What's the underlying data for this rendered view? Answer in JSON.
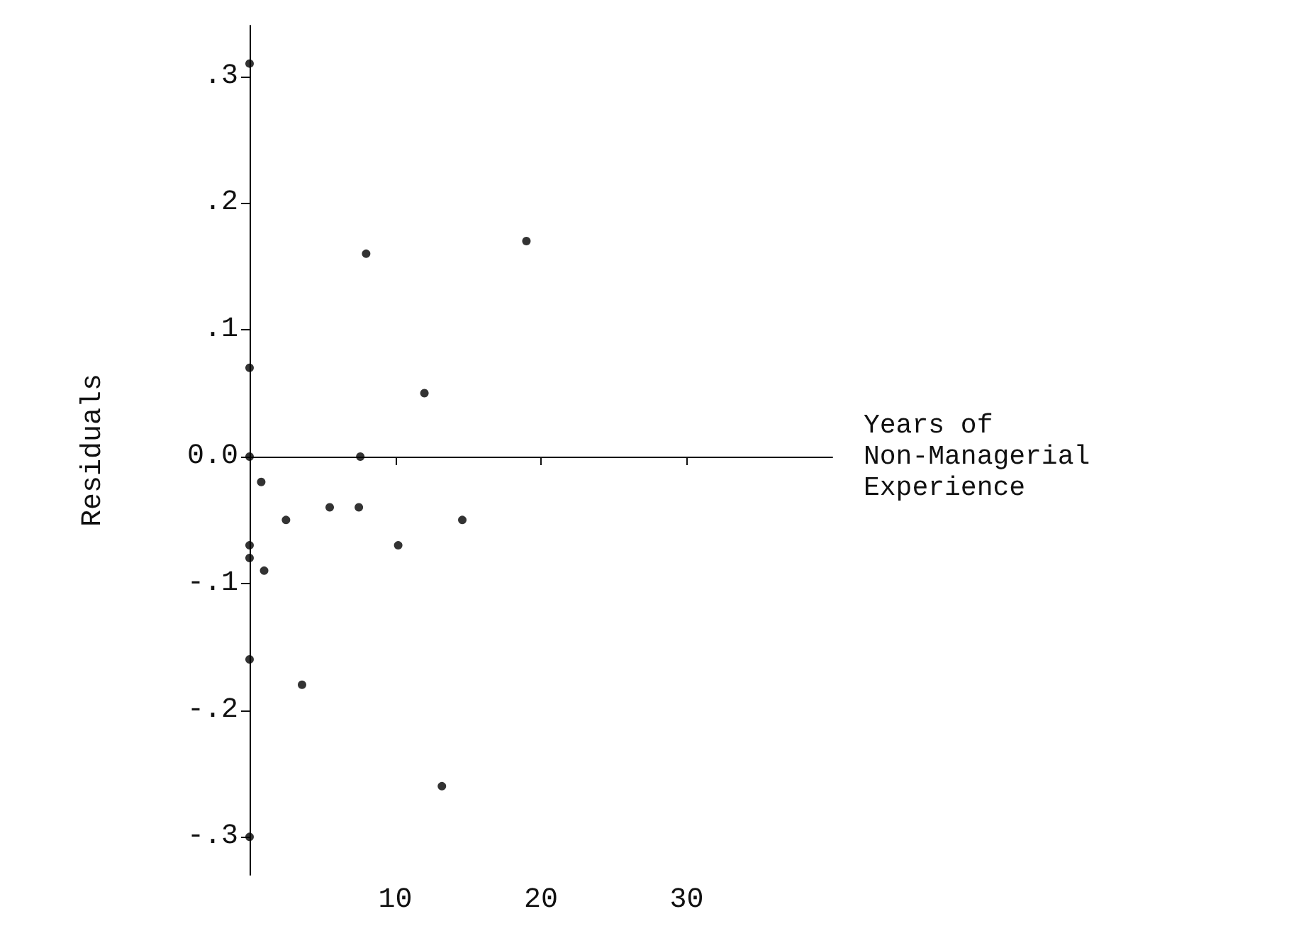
{
  "chart_data": {
    "type": "scatter",
    "xlabel": "Years of\nNon-Managerial\nExperience",
    "ylabel": "Residuals",
    "xlim": [
      0,
      40
    ],
    "ylim": [
      -0.33,
      0.34
    ],
    "xticks": [
      10,
      20,
      30
    ],
    "yticks": [
      {
        "value": -0.3,
        "label": "-.3"
      },
      {
        "value": -0.2,
        "label": "-.2"
      },
      {
        "value": -0.1,
        "label": "-.1"
      },
      {
        "value": 0,
        "label": "0.0"
      },
      {
        "value": 0.1,
        "label": ".1"
      },
      {
        "value": 0.2,
        "label": ".2"
      },
      {
        "value": 0.3,
        "label": ".3"
      }
    ],
    "marker": "circle",
    "series": [
      {
        "color": "#000000",
        "x": [
          0,
          0,
          8,
          19,
          12,
          0,
          7.6,
          0.8,
          2.5,
          5.5,
          7.5,
          10.2,
          14.6,
          0,
          0,
          1,
          0,
          3.6,
          13.2,
          0
        ],
        "values": [
          0.31,
          0.07,
          0.16,
          0.17,
          0.05,
          0,
          0,
          -0.02,
          -0.05,
          -0.04,
          -0.04,
          -0.07,
          -0.05,
          -0.07,
          -0.08,
          -0.09,
          -0.16,
          -0.18,
          -0.26,
          -0.3
        ]
      }
    ]
  }
}
